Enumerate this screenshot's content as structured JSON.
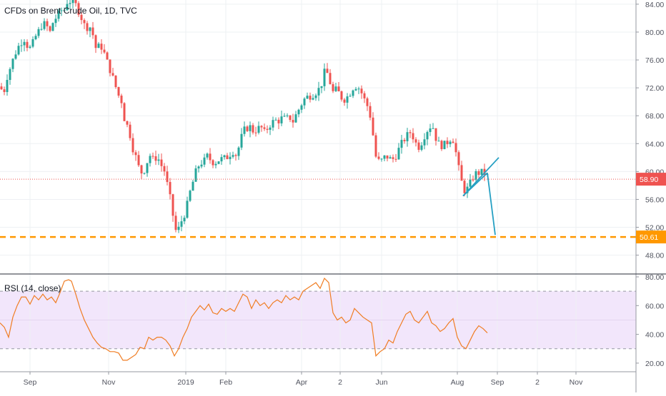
{
  "chart_data": [
    {
      "type": "candlestick",
      "title": "CFDs on Brent Crude Oil, 1D, TVC",
      "x_tick_labels": [
        "Sep",
        "Nov",
        "2019",
        "Feb",
        "Apr",
        "2",
        "Jun",
        "Aug",
        "Sep",
        "2",
        "Nov"
      ],
      "y_tick_labels": [
        "84.00",
        "80.00",
        "76.00",
        "72.00",
        "68.00",
        "64.00",
        "60.00",
        "56.00",
        "52.00",
        "48.00"
      ],
      "ylim": [
        45.3,
        84.6
      ],
      "grid": true,
      "up_color": "#26a69a",
      "down_color": "#ef5350",
      "close_series": [
        {
          "x": 0,
          "y": 72.2
        },
        {
          "x": 5,
          "y": 71.2
        },
        {
          "x": 10,
          "y": 73.6
        },
        {
          "x": 15,
          "y": 75.1
        },
        {
          "x": 20,
          "y": 76.6
        },
        {
          "x": 25,
          "y": 77.8
        },
        {
          "x": 30,
          "y": 78.6
        },
        {
          "x": 35,
          "y": 79.1
        },
        {
          "x": 40,
          "y": 77.4
        },
        {
          "x": 45,
          "y": 78.2
        },
        {
          "x": 50,
          "y": 79.4
        },
        {
          "x": 55,
          "y": 80.3
        },
        {
          "x": 60,
          "y": 81.3
        },
        {
          "x": 65,
          "y": 80.9
        },
        {
          "x": 70,
          "y": 80.0
        },
        {
          "x": 75,
          "y": 81.7
        },
        {
          "x": 80,
          "y": 82.2
        },
        {
          "x": 85,
          "y": 83.1
        },
        {
          "x": 90,
          "y": 83.2
        },
        {
          "x": 95,
          "y": 84.6
        },
        {
          "x": 100,
          "y": 84.3
        },
        {
          "x": 105,
          "y": 84.1
        },
        {
          "x": 110,
          "y": 83.0
        },
        {
          "x": 115,
          "y": 81.8
        },
        {
          "x": 120,
          "y": 80.5
        },
        {
          "x": 125,
          "y": 81.0
        },
        {
          "x": 130,
          "y": 79.6
        },
        {
          "x": 135,
          "y": 77.3
        },
        {
          "x": 140,
          "y": 78.3
        },
        {
          "x": 145,
          "y": 77.2
        },
        {
          "x": 150,
          "y": 75.7
        },
        {
          "x": 155,
          "y": 74.3
        },
        {
          "x": 160,
          "y": 72.8
        },
        {
          "x": 165,
          "y": 71.1
        },
        {
          "x": 170,
          "y": 70.1
        },
        {
          "x": 175,
          "y": 67.0
        },
        {
          "x": 180,
          "y": 66.3
        },
        {
          "x": 185,
          "y": 63.6
        },
        {
          "x": 190,
          "y": 62.1
        },
        {
          "x": 195,
          "y": 60.3
        },
        {
          "x": 200,
          "y": 59.6
        },
        {
          "x": 205,
          "y": 61.2
        },
        {
          "x": 210,
          "y": 62.3
        },
        {
          "x": 215,
          "y": 61.6
        },
        {
          "x": 220,
          "y": 62.2
        },
        {
          "x": 225,
          "y": 61.0
        },
        {
          "x": 230,
          "y": 60.1
        },
        {
          "x": 235,
          "y": 57.7
        },
        {
          "x": 240,
          "y": 55.2
        },
        {
          "x": 245,
          "y": 51.5
        },
        {
          "x": 250,
          "y": 51.8
        },
        {
          "x": 255,
          "y": 53.2
        },
        {
          "x": 260,
          "y": 54.3
        },
        {
          "x": 265,
          "y": 56.7
        },
        {
          "x": 270,
          "y": 58.5
        },
        {
          "x": 275,
          "y": 60.3
        },
        {
          "x": 280,
          "y": 61.2
        },
        {
          "x": 285,
          "y": 61.4
        },
        {
          "x": 290,
          "y": 62.2
        },
        {
          "x": 295,
          "y": 61.6
        },
        {
          "x": 300,
          "y": 61.2
        },
        {
          "x": 305,
          "y": 61.6
        },
        {
          "x": 310,
          "y": 61.8
        },
        {
          "x": 315,
          "y": 61.9
        },
        {
          "x": 320,
          "y": 62.2
        },
        {
          "x": 325,
          "y": 63.0
        },
        {
          "x": 330,
          "y": 62.4
        },
        {
          "x": 335,
          "y": 63.7
        },
        {
          "x": 340,
          "y": 65.8
        },
        {
          "x": 345,
          "y": 66.2
        },
        {
          "x": 350,
          "y": 66.4
        },
        {
          "x": 355,
          "y": 65.7
        },
        {
          "x": 360,
          "y": 66.1
        },
        {
          "x": 365,
          "y": 66.4
        },
        {
          "x": 370,
          "y": 65.6
        },
        {
          "x": 375,
          "y": 66.3
        },
        {
          "x": 380,
          "y": 67.0
        },
        {
          "x": 385,
          "y": 67.3
        },
        {
          "x": 390,
          "y": 67.3
        },
        {
          "x": 395,
          "y": 67.7
        },
        {
          "x": 400,
          "y": 67.5
        },
        {
          "x": 405,
          "y": 67.8
        },
        {
          "x": 410,
          "y": 67.2
        },
        {
          "x": 415,
          "y": 68.3
        },
        {
          "x": 420,
          "y": 69.3
        },
        {
          "x": 425,
          "y": 70.3
        },
        {
          "x": 430,
          "y": 70.7
        },
        {
          "x": 435,
          "y": 70.9
        },
        {
          "x": 440,
          "y": 71.2
        },
        {
          "x": 445,
          "y": 71.6
        },
        {
          "x": 450,
          "y": 72.6
        },
        {
          "x": 455,
          "y": 74.6
        },
        {
          "x": 460,
          "y": 73.7
        },
        {
          "x": 465,
          "y": 71.3
        },
        {
          "x": 470,
          "y": 71.7
        },
        {
          "x": 475,
          "y": 71.2
        },
        {
          "x": 480,
          "y": 70.2
        },
        {
          "x": 485,
          "y": 70.6
        },
        {
          "x": 490,
          "y": 71.3
        },
        {
          "x": 495,
          "y": 72.2
        },
        {
          "x": 500,
          "y": 72.3
        },
        {
          "x": 505,
          "y": 71.5
        },
        {
          "x": 510,
          "y": 70.3
        },
        {
          "x": 515,
          "y": 69.2
        },
        {
          "x": 520,
          "y": 67.2
        },
        {
          "x": 525,
          "y": 62.3
        },
        {
          "x": 530,
          "y": 61.5
        },
        {
          "x": 535,
          "y": 61.6
        },
        {
          "x": 540,
          "y": 62.3
        },
        {
          "x": 545,
          "y": 61.8
        },
        {
          "x": 550,
          "y": 61.8
        },
        {
          "x": 555,
          "y": 62.4
        },
        {
          "x": 560,
          "y": 63.7
        },
        {
          "x": 565,
          "y": 64.5
        },
        {
          "x": 570,
          "y": 65.2
        },
        {
          "x": 575,
          "y": 65.7
        },
        {
          "x": 580,
          "y": 64.5
        },
        {
          "x": 585,
          "y": 63.4
        },
        {
          "x": 590,
          "y": 64.2
        },
        {
          "x": 595,
          "y": 65.4
        },
        {
          "x": 600,
          "y": 66.3
        },
        {
          "x": 605,
          "y": 66.7
        },
        {
          "x": 610,
          "y": 64.8
        },
        {
          "x": 615,
          "y": 63.8
        },
        {
          "x": 620,
          "y": 63.7
        },
        {
          "x": 625,
          "y": 64.1
        },
        {
          "x": 630,
          "y": 64.7
        },
        {
          "x": 635,
          "y": 64.5
        },
        {
          "x": 640,
          "y": 61.5
        },
        {
          "x": 645,
          "y": 58.8
        },
        {
          "x": 650,
          "y": 57.3
        },
        {
          "x": 655,
          "y": 57.6
        },
        {
          "x": 660,
          "y": 58.8
        },
        {
          "x": 665,
          "y": 59.7
        },
        {
          "x": 670,
          "y": 59.8
        },
        {
          "x": 675,
          "y": 59.9
        },
        {
          "x": 680,
          "y": 59.6
        },
        {
          "x": 685,
          "y": 58.9
        }
      ],
      "price_lines": [
        {
          "value": 58.9,
          "label": "58.90",
          "color": "#ef5350",
          "style": "dotted"
        },
        {
          "value": 50.61,
          "label": "50.61",
          "color": "#ff9800",
          "style": "dashed"
        }
      ],
      "drawings": {
        "color": "#26a0c3",
        "triangle_lower": [
          {
            "x": 648,
            "y": 56.5
          },
          {
            "x": 698,
            "y": 62.0
          }
        ],
        "triangle_upper": [
          {
            "x": 648,
            "y": 56.5
          },
          {
            "x": 682,
            "y": 59.8
          }
        ],
        "breakdown": [
          {
            "x": 682,
            "y": 59.8
          },
          {
            "x": 693,
            "y": 50.9
          }
        ]
      }
    },
    {
      "type": "line",
      "title": "RSI (14, close)",
      "y_tick_labels": [
        "80.00",
        "60.00",
        "40.00",
        "20.00"
      ],
      "ylim": [
        14,
        82
      ],
      "overbought": 70,
      "oversold": 30,
      "band_color": "#f2e6fb",
      "line_color": "#f07d23",
      "series": [
        {
          "x": 0,
          "y": 48
        },
        {
          "x": 6,
          "y": 45
        },
        {
          "x": 12,
          "y": 38
        },
        {
          "x": 18,
          "y": 52
        },
        {
          "x": 24,
          "y": 60
        },
        {
          "x": 30,
          "y": 66
        },
        {
          "x": 36,
          "y": 66
        },
        {
          "x": 42,
          "y": 61
        },
        {
          "x": 48,
          "y": 67
        },
        {
          "x": 54,
          "y": 64
        },
        {
          "x": 60,
          "y": 68
        },
        {
          "x": 66,
          "y": 64
        },
        {
          "x": 72,
          "y": 66
        },
        {
          "x": 78,
          "y": 62
        },
        {
          "x": 84,
          "y": 69
        },
        {
          "x": 90,
          "y": 77
        },
        {
          "x": 96,
          "y": 78
        },
        {
          "x": 100,
          "y": 77
        },
        {
          "x": 106,
          "y": 68
        },
        {
          "x": 112,
          "y": 58
        },
        {
          "x": 118,
          "y": 50
        },
        {
          "x": 124,
          "y": 44
        },
        {
          "x": 130,
          "y": 38
        },
        {
          "x": 136,
          "y": 34
        },
        {
          "x": 142,
          "y": 31
        },
        {
          "x": 148,
          "y": 30
        },
        {
          "x": 154,
          "y": 28
        },
        {
          "x": 160,
          "y": 28
        },
        {
          "x": 166,
          "y": 27
        },
        {
          "x": 172,
          "y": 22
        },
        {
          "x": 178,
          "y": 22
        },
        {
          "x": 184,
          "y": 24
        },
        {
          "x": 190,
          "y": 26
        },
        {
          "x": 196,
          "y": 31
        },
        {
          "x": 202,
          "y": 30
        },
        {
          "x": 208,
          "y": 38
        },
        {
          "x": 214,
          "y": 36
        },
        {
          "x": 220,
          "y": 38
        },
        {
          "x": 226,
          "y": 38
        },
        {
          "x": 232,
          "y": 36
        },
        {
          "x": 238,
          "y": 32
        },
        {
          "x": 244,
          "y": 25
        },
        {
          "x": 250,
          "y": 30
        },
        {
          "x": 256,
          "y": 38
        },
        {
          "x": 262,
          "y": 44
        },
        {
          "x": 268,
          "y": 52
        },
        {
          "x": 274,
          "y": 56
        },
        {
          "x": 280,
          "y": 60
        },
        {
          "x": 286,
          "y": 57
        },
        {
          "x": 292,
          "y": 61
        },
        {
          "x": 298,
          "y": 55
        },
        {
          "x": 304,
          "y": 54
        },
        {
          "x": 310,
          "y": 58
        },
        {
          "x": 316,
          "y": 56
        },
        {
          "x": 322,
          "y": 58
        },
        {
          "x": 328,
          "y": 56
        },
        {
          "x": 334,
          "y": 62
        },
        {
          "x": 340,
          "y": 68
        },
        {
          "x": 346,
          "y": 66
        },
        {
          "x": 352,
          "y": 58
        },
        {
          "x": 358,
          "y": 64
        },
        {
          "x": 364,
          "y": 60
        },
        {
          "x": 370,
          "y": 62
        },
        {
          "x": 376,
          "y": 58
        },
        {
          "x": 382,
          "y": 62
        },
        {
          "x": 388,
          "y": 64
        },
        {
          "x": 394,
          "y": 62
        },
        {
          "x": 400,
          "y": 67
        },
        {
          "x": 406,
          "y": 64
        },
        {
          "x": 412,
          "y": 66
        },
        {
          "x": 418,
          "y": 64
        },
        {
          "x": 424,
          "y": 70
        },
        {
          "x": 430,
          "y": 72
        },
        {
          "x": 436,
          "y": 74
        },
        {
          "x": 442,
          "y": 76
        },
        {
          "x": 448,
          "y": 72
        },
        {
          "x": 454,
          "y": 79
        },
        {
          "x": 460,
          "y": 76
        },
        {
          "x": 466,
          "y": 55
        },
        {
          "x": 472,
          "y": 50
        },
        {
          "x": 478,
          "y": 52
        },
        {
          "x": 484,
          "y": 48
        },
        {
          "x": 490,
          "y": 50
        },
        {
          "x": 496,
          "y": 58
        },
        {
          "x": 502,
          "y": 55
        },
        {
          "x": 508,
          "y": 52
        },
        {
          "x": 514,
          "y": 50
        },
        {
          "x": 520,
          "y": 48
        },
        {
          "x": 526,
          "y": 25
        },
        {
          "x": 532,
          "y": 28
        },
        {
          "x": 538,
          "y": 30
        },
        {
          "x": 544,
          "y": 36
        },
        {
          "x": 550,
          "y": 34
        },
        {
          "x": 556,
          "y": 42
        },
        {
          "x": 562,
          "y": 48
        },
        {
          "x": 568,
          "y": 54
        },
        {
          "x": 574,
          "y": 56
        },
        {
          "x": 580,
          "y": 50
        },
        {
          "x": 586,
          "y": 48
        },
        {
          "x": 592,
          "y": 52
        },
        {
          "x": 598,
          "y": 56
        },
        {
          "x": 604,
          "y": 48
        },
        {
          "x": 610,
          "y": 46
        },
        {
          "x": 616,
          "y": 42
        },
        {
          "x": 622,
          "y": 44
        },
        {
          "x": 628,
          "y": 48
        },
        {
          "x": 634,
          "y": 51
        },
        {
          "x": 640,
          "y": 38
        },
        {
          "x": 646,
          "y": 32
        },
        {
          "x": 652,
          "y": 30
        },
        {
          "x": 658,
          "y": 36
        },
        {
          "x": 664,
          "y": 42
        },
        {
          "x": 670,
          "y": 46
        },
        {
          "x": 676,
          "y": 44
        },
        {
          "x": 682,
          "y": 41
        }
      ]
    }
  ]
}
